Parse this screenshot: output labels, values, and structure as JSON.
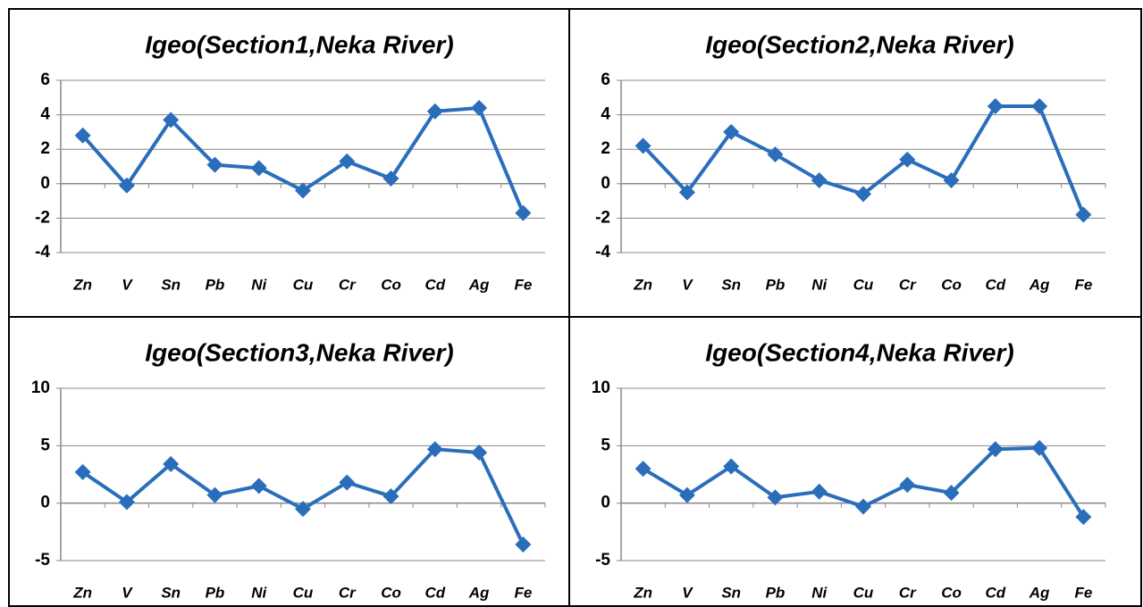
{
  "chart_data": [
    {
      "type": "line",
      "title": "Igeo(Section1,Neka River)",
      "categories": [
        "Zn",
        "V",
        "Sn",
        "Pb",
        "Ni",
        "Cu",
        "Cr",
        "Co",
        "Cd",
        "Ag",
        "Fe"
      ],
      "values": [
        2.8,
        -0.1,
        3.7,
        1.1,
        0.9,
        -0.4,
        1.3,
        0.3,
        4.2,
        4.4,
        -1.7
      ],
      "color": "#2a6ebb",
      "ylim": [
        -4,
        6
      ],
      "yticks": [
        -4,
        -2,
        0,
        2,
        4,
        6
      ],
      "grid": true
    },
    {
      "type": "line",
      "title": "Igeo(Section2,Neka River)",
      "categories": [
        "Zn",
        "V",
        "Sn",
        "Pb",
        "Ni",
        "Cu",
        "Cr",
        "Co",
        "Cd",
        "Ag",
        "Fe"
      ],
      "values": [
        2.2,
        -0.5,
        3.0,
        1.7,
        0.2,
        -0.6,
        1.4,
        0.2,
        4.5,
        4.5,
        -1.8
      ],
      "color": "#2a6ebb",
      "ylim": [
        -4,
        6
      ],
      "yticks": [
        -4,
        -2,
        0,
        2,
        4,
        6
      ],
      "grid": true
    },
    {
      "type": "line",
      "title": "Igeo(Section3,Neka River)",
      "categories": [
        "Zn",
        "V",
        "Sn",
        "Pb",
        "Ni",
        "Cu",
        "Cr",
        "Co",
        "Cd",
        "Ag",
        "Fe"
      ],
      "values": [
        2.7,
        0.1,
        3.4,
        0.7,
        1.5,
        -0.5,
        1.8,
        0.6,
        4.7,
        4.4,
        -3.6
      ],
      "color": "#2a6ebb",
      "ylim": [
        -5,
        10
      ],
      "yticks": [
        -5,
        0,
        5,
        10
      ],
      "grid": true
    },
    {
      "type": "line",
      "title": "Igeo(Section4,Neka River)",
      "categories": [
        "Zn",
        "V",
        "Sn",
        "Pb",
        "Ni",
        "Cu",
        "Cr",
        "Co",
        "Cd",
        "Ag",
        "Fe"
      ],
      "values": [
        3.0,
        0.7,
        3.2,
        0.5,
        1.0,
        -0.3,
        1.6,
        0.9,
        4.7,
        4.8,
        -1.2
      ],
      "color": "#2a6ebb",
      "ylim": [
        -5,
        10
      ],
      "yticks": [
        -5,
        0,
        5,
        10
      ],
      "grid": true
    }
  ]
}
